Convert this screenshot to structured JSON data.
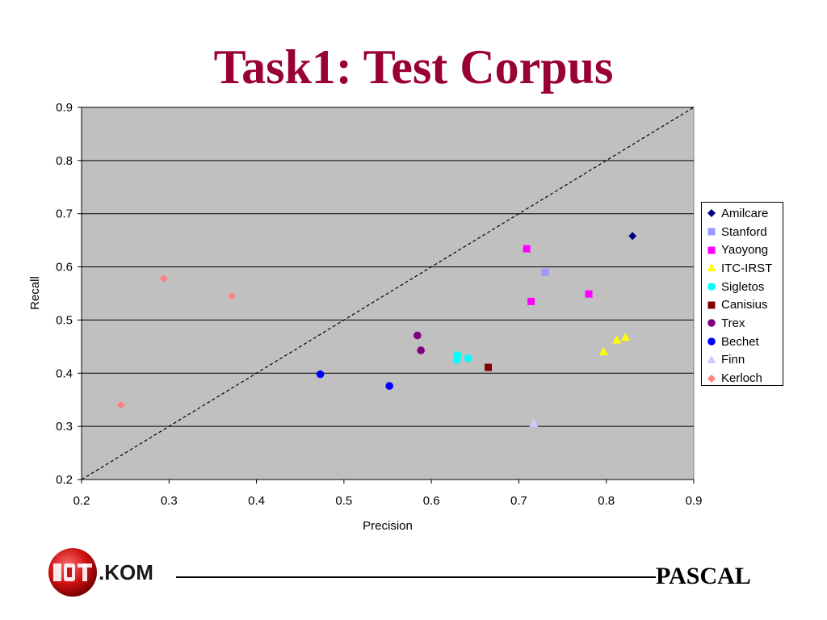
{
  "slide": {
    "title": "Task1: Test Corpus"
  },
  "footer": {
    "logo_text": ".KOM",
    "right_text": "PASCAL"
  },
  "chart_data": {
    "type": "scatter",
    "title": "",
    "xlabel": "Precision",
    "ylabel": "Recall",
    "xlim": [
      0.2,
      0.9
    ],
    "ylim": [
      0.2,
      0.9
    ],
    "xticks": [
      "0.2",
      "0.3",
      "0.4",
      "0.5",
      "0.6",
      "0.7",
      "0.8",
      "0.9"
    ],
    "yticks": [
      "0.2",
      "0.3",
      "0.4",
      "0.5",
      "0.6",
      "0.7",
      "0.8",
      "0.9"
    ],
    "grid": "horizontal",
    "legend": "right",
    "plot_background": "#c0c0c0",
    "reference_line": {
      "from": [
        0.2,
        0.2
      ],
      "to": [
        0.9,
        0.9
      ],
      "style": "dashed"
    },
    "series": [
      {
        "name": "Amilcare",
        "marker": "diamond",
        "color": "#000080",
        "points": [
          [
            0.83,
            0.658
          ]
        ]
      },
      {
        "name": "Stanford",
        "marker": "square",
        "color": "#9999ff",
        "points": [
          [
            0.73,
            0.59
          ]
        ]
      },
      {
        "name": "Yaoyong",
        "marker": "square",
        "color": "#ff00ff",
        "points": [
          [
            0.709,
            0.634
          ],
          [
            0.714,
            0.535
          ],
          [
            0.78,
            0.549
          ]
        ]
      },
      {
        "name": "ITC-IRST",
        "marker": "triangle",
        "color": "#ffff00",
        "points": [
          [
            0.797,
            0.44
          ],
          [
            0.812,
            0.462
          ],
          [
            0.822,
            0.467
          ]
        ]
      },
      {
        "name": "Sigletos",
        "marker": "circle",
        "color": "#00ffff",
        "points": [
          [
            0.629,
            0.425
          ],
          [
            0.63,
            0.434
          ],
          [
            0.642,
            0.428
          ]
        ]
      },
      {
        "name": "Canisius",
        "marker": "square",
        "color": "#800000",
        "points": [
          [
            0.665,
            0.411
          ]
        ]
      },
      {
        "name": "Trex",
        "marker": "circle",
        "color": "#800080",
        "points": [
          [
            0.584,
            0.471
          ],
          [
            0.588,
            0.443
          ]
        ]
      },
      {
        "name": "Bechet",
        "marker": "circle",
        "color": "#0000ff",
        "points": [
          [
            0.473,
            0.398
          ],
          [
            0.552,
            0.376
          ]
        ]
      },
      {
        "name": "Finn",
        "marker": "triangle",
        "color": "#ccccff",
        "points": [
          [
            0.717,
            0.305
          ]
        ]
      },
      {
        "name": "Kerloch",
        "marker": "diamond",
        "color": "#ff8080",
        "points": [
          [
            0.245,
            0.34
          ],
          [
            0.294,
            0.578
          ],
          [
            0.372,
            0.545
          ]
        ]
      }
    ]
  }
}
